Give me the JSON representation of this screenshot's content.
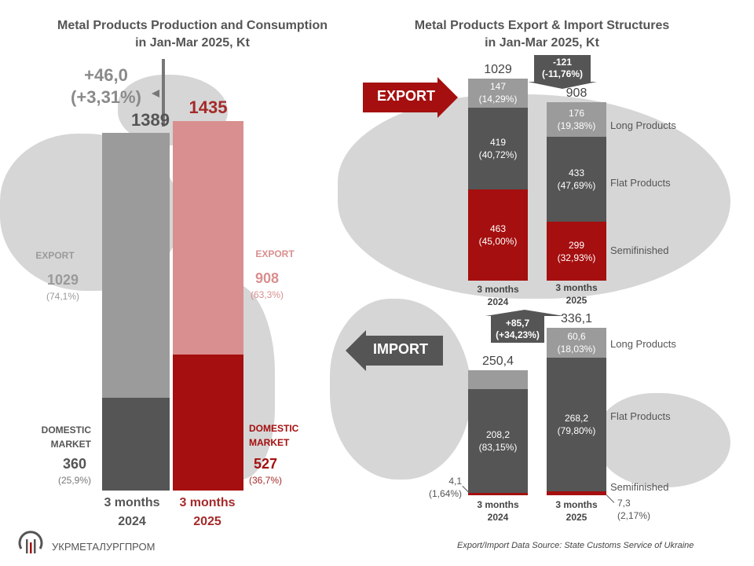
{
  "colors": {
    "grey_light": "#9b9b9b",
    "grey_dark": "#555555",
    "red": "#a50f0f",
    "pink": "#d98f8f",
    "map": "#d6d6d6",
    "text": "#555555",
    "red_text": "#a52a2a"
  },
  "left": {
    "title_line1": "Metal Products Production and Consumption",
    "title_line2": "in Jan-Mar 2025, Kt",
    "delta_value": "+46,0",
    "delta_pct": "(+3,31%)",
    "total_2024": "1389",
    "total_2025": "1435",
    "export_label_2024": "EXPORT",
    "export_value_2024": "1029",
    "export_pct_2024": "(74,1%)",
    "export_label_2025": "EXPORT",
    "export_value_2025": "908",
    "export_pct_2025": "(63,3%)",
    "domestic_label_2024_l1": "DOMESTIC",
    "domestic_label_2024_l2": "MARKET",
    "domestic_value_2024": "360",
    "domestic_pct_2024": "(25,9%)",
    "domestic_label_2025_l1": "DOMESTIC",
    "domestic_label_2025_l2": "MARKET",
    "domestic_value_2025": "527",
    "domestic_pct_2025": "(36,7%)",
    "cat_2024_l1": "3 months",
    "cat_2024_l2": "2024",
    "cat_2025_l1": "3 months",
    "cat_2025_l2": "2025"
  },
  "right": {
    "title_line1": "Metal Products Export & Import Structures",
    "title_line2": "in Jan-Mar 2025, Kt",
    "export_arrow_label": "EXPORT",
    "import_arrow_label": "IMPORT",
    "export": {
      "total_2024": "1029",
      "total_2025": "908",
      "delta_l1": "-121",
      "delta_l2": "(-11,76%)",
      "seg_2024": [
        {
          "v": "147",
          "p": "(14,29%)"
        },
        {
          "v": "419",
          "p": "(40,72%)"
        },
        {
          "v": "463",
          "p": "(45,00%)"
        }
      ],
      "seg_2025": [
        {
          "v": "176",
          "p": "(19,38%)"
        },
        {
          "v": "433",
          "p": "(47,69%)"
        },
        {
          "v": "299",
          "p": "(32,93%)"
        }
      ],
      "legend": [
        "Long Products",
        "Flat Products",
        "Semifinished"
      ],
      "cat_2024_l1": "3 months",
      "cat_2024_l2": "2024",
      "cat_2025_l1": "3 months",
      "cat_2025_l2": "2025"
    },
    "import": {
      "total_2024": "250,4",
      "total_2025": "336,1",
      "delta_l1": "+85,7",
      "delta_l2": "(+34,23%)",
      "seg_2024": [
        {
          "v": "38,1",
          "p": "(15,22%)"
        },
        {
          "v": "208,2",
          "p": "(83,15%)"
        },
        {
          "v": "4,1",
          "p": "(1,64%)"
        }
      ],
      "seg_2025": [
        {
          "v": "60,6",
          "p": "(18,03%)"
        },
        {
          "v": "268,2",
          "p": "(79,80%)"
        },
        {
          "v": "7,3",
          "p": "(2,17%)"
        }
      ],
      "legend": [
        "Long Products",
        "Flat Products",
        "Semifinished"
      ],
      "cat_2024_l1": "3 months",
      "cat_2024_l2": "2024",
      "cat_2025_l1": "3 months",
      "cat_2025_l2": "2025"
    }
  },
  "footer": {
    "logo_text": "УКРМЕТАЛУРГПРОМ",
    "source": "Export/Import Data Source: State Customs Service of Ukraine"
  },
  "chart_data": [
    {
      "type": "bar",
      "title": "Metal Products Production and Consumption in Jan-Mar 2025, Kt",
      "stacked": true,
      "categories": [
        "3 months 2024",
        "3 months 2025"
      ],
      "series": [
        {
          "name": "Domestic Market",
          "values": [
            360,
            527
          ]
        },
        {
          "name": "Export",
          "values": [
            1029,
            908
          ]
        }
      ],
      "totals": [
        1389,
        1435
      ],
      "annotation": "+46,0 (+3,31%)"
    },
    {
      "type": "bar",
      "title": "Metal Products Export Structure in Jan-Mar 2025, Kt",
      "stacked": true,
      "categories": [
        "3 months 2024",
        "3 months 2025"
      ],
      "series": [
        {
          "name": "Semifinished",
          "values": [
            463,
            299
          ]
        },
        {
          "name": "Flat Products",
          "values": [
            419,
            433
          ]
        },
        {
          "name": "Long Products",
          "values": [
            147,
            176
          ]
        }
      ],
      "totals": [
        1029,
        908
      ],
      "annotation": "-121 (-11,76%)"
    },
    {
      "type": "bar",
      "title": "Metal Products Import Structure in Jan-Mar 2025, Kt",
      "stacked": true,
      "categories": [
        "3 months 2024",
        "3 months 2025"
      ],
      "series": [
        {
          "name": "Semifinished",
          "values": [
            4.1,
            7.3
          ]
        },
        {
          "name": "Flat Products",
          "values": [
            208.2,
            268.2
          ]
        },
        {
          "name": "Long Products",
          "values": [
            38.1,
            60.6
          ]
        }
      ],
      "totals": [
        250.4,
        336.1
      ],
      "annotation": "+85,7 (+34,23%)"
    }
  ]
}
